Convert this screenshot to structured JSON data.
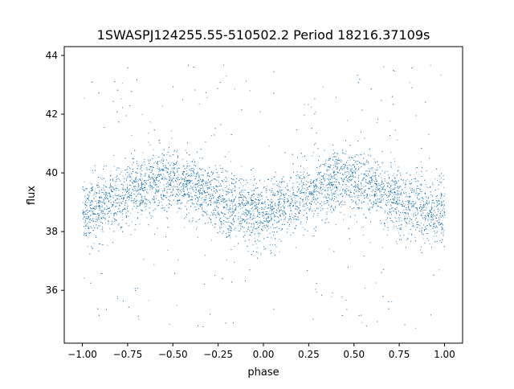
{
  "chart_data": {
    "type": "scatter",
    "title": "1SWASPJ124255.55-510502.2 Period 18216.37109s",
    "xlabel": "phase",
    "ylabel": "flux",
    "xlim": [
      -1.1,
      1.1
    ],
    "ylim": [
      34.2,
      44.3
    ],
    "x_ticks": [
      -1.0,
      -0.75,
      -0.5,
      -0.25,
      0.0,
      0.25,
      0.5,
      0.75,
      1.0
    ],
    "x_tick_labels": [
      "−1.00",
      "−0.75",
      "−0.50",
      "−0.25",
      "0.00",
      "0.25",
      "0.50",
      "0.75",
      "1.00"
    ],
    "y_ticks": [
      36,
      38,
      40,
      42,
      44
    ],
    "y_tick_labels": [
      "36",
      "38",
      "40",
      "42",
      "44"
    ],
    "grid": false,
    "legend": "none",
    "marker_color": "#1f77b4",
    "series": [
      {
        "description_values": "folded light curve, phase -1 to 1 (two cycles)",
        "profile_x": [
          -1.0,
          -0.9,
          -0.8,
          -0.7,
          -0.6,
          -0.5,
          -0.4,
          -0.3,
          -0.2,
          -0.1,
          0.0,
          0.1,
          0.2,
          0.3,
          0.4,
          0.5,
          0.6,
          0.7,
          0.8,
          0.9,
          1.0
        ],
        "profile_y": [
          38.6,
          38.8,
          39.1,
          39.5,
          39.7,
          39.7,
          39.5,
          39.2,
          38.9,
          38.7,
          38.6,
          38.8,
          39.1,
          39.5,
          39.7,
          39.7,
          39.5,
          39.2,
          38.9,
          38.7,
          38.6
        ]
      }
    ]
  }
}
